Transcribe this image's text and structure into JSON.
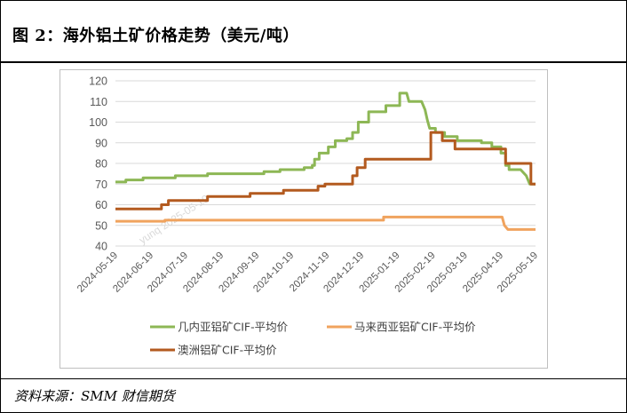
{
  "header": {
    "title": "图 2：海外铝土矿价格走势（美元/吨）"
  },
  "footer": {
    "source": "资料来源：SMM  财信期货"
  },
  "watermark": "yunq 2025-05-19",
  "colors": {
    "guinea": "#8db755",
    "malaysia": "#f0a35e",
    "australia": "#b35a1f"
  },
  "chart_data": {
    "type": "line",
    "title": "",
    "xlabel": "",
    "ylabel": "",
    "ylim": [
      40,
      120
    ],
    "yticks": [
      40,
      50,
      60,
      70,
      80,
      90,
      100,
      110,
      120
    ],
    "grid": true,
    "legend_position": "bottom",
    "xlim": [
      "2024-05-19",
      "2025-05-19"
    ],
    "xticks": [
      "2024-05-19",
      "2024-06-19",
      "2024-07-19",
      "2024-08-19",
      "2024-09-19",
      "2024-10-19",
      "2024-11-19",
      "2024-12-19",
      "2025-01-19",
      "2025-02-19",
      "2025-03-19",
      "2025-04-19",
      "2025-05-19"
    ],
    "series": [
      {
        "name": "几内亚铝矿CIF-平均价",
        "color": "#8db755",
        "points": [
          [
            "2024-05-19",
            71
          ],
          [
            "2024-05-28",
            71
          ],
          [
            "2024-05-28",
            72
          ],
          [
            "2024-06-12",
            72
          ],
          [
            "2024-06-12",
            73
          ],
          [
            "2024-07-10",
            73
          ],
          [
            "2024-07-10",
            74
          ],
          [
            "2024-08-07",
            74
          ],
          [
            "2024-08-07",
            75
          ],
          [
            "2024-09-25",
            75
          ],
          [
            "2024-09-25",
            76
          ],
          [
            "2024-10-09",
            76
          ],
          [
            "2024-10-09",
            77
          ],
          [
            "2024-10-30",
            77
          ],
          [
            "2024-10-30",
            78
          ],
          [
            "2024-11-06",
            78
          ],
          [
            "2024-11-06",
            79
          ],
          [
            "2024-11-08",
            79
          ],
          [
            "2024-11-08",
            82
          ],
          [
            "2024-11-12",
            82
          ],
          [
            "2024-11-12",
            85
          ],
          [
            "2024-11-20",
            85
          ],
          [
            "2024-11-20",
            88
          ],
          [
            "2024-11-26",
            88
          ],
          [
            "2024-11-26",
            91
          ],
          [
            "2024-12-06",
            91
          ],
          [
            "2024-12-06",
            92
          ],
          [
            "2024-12-11",
            92
          ],
          [
            "2024-12-11",
            95
          ],
          [
            "2024-12-16",
            95
          ],
          [
            "2024-12-16",
            100
          ],
          [
            "2024-12-25",
            100
          ],
          [
            "2024-12-25",
            105
          ],
          [
            "2025-01-09",
            105
          ],
          [
            "2025-01-09",
            108
          ],
          [
            "2025-01-21",
            108
          ],
          [
            "2025-01-21",
            114
          ],
          [
            "2025-01-27",
            114
          ],
          [
            "2025-01-29",
            110
          ],
          [
            "2025-02-09",
            110
          ],
          [
            "2025-02-12",
            106
          ],
          [
            "2025-02-14",
            101
          ],
          [
            "2025-02-16",
            97
          ],
          [
            "2025-02-21",
            97
          ],
          [
            "2025-02-21",
            95
          ],
          [
            "2025-03-01",
            95
          ],
          [
            "2025-03-01",
            93
          ],
          [
            "2025-03-12",
            93
          ],
          [
            "2025-03-12",
            91
          ],
          [
            "2025-04-02",
            91
          ],
          [
            "2025-04-02",
            90
          ],
          [
            "2025-04-11",
            90
          ],
          [
            "2025-04-11",
            88
          ],
          [
            "2025-04-19",
            88
          ],
          [
            "2025-04-19",
            85
          ],
          [
            "2025-04-23",
            85
          ],
          [
            "2025-04-23",
            79
          ],
          [
            "2025-04-26",
            79
          ],
          [
            "2025-04-26",
            77
          ],
          [
            "2025-05-06",
            77
          ],
          [
            "2025-05-11",
            74
          ],
          [
            "2025-05-14",
            70
          ],
          [
            "2025-05-19",
            70
          ]
        ]
      },
      {
        "name": "马来西亚铝矿CIF-平均价",
        "color": "#f0a35e",
        "points": [
          [
            "2024-05-19",
            52
          ],
          [
            "2024-07-01",
            52
          ],
          [
            "2024-07-01",
            52.5
          ],
          [
            "2025-01-07",
            52.5
          ],
          [
            "2025-01-07",
            54
          ],
          [
            "2025-04-20",
            54
          ],
          [
            "2025-04-22",
            50
          ],
          [
            "2025-04-25",
            48
          ],
          [
            "2025-05-19",
            48
          ]
        ]
      },
      {
        "name": "澳洲铝矿CIF-平均价",
        "color": "#b35a1f",
        "points": [
          [
            "2024-05-19",
            58
          ],
          [
            "2024-06-28",
            58
          ],
          [
            "2024-06-28",
            60
          ],
          [
            "2024-07-04",
            60
          ],
          [
            "2024-07-04",
            62
          ],
          [
            "2024-08-07",
            62
          ],
          [
            "2024-08-07",
            64
          ],
          [
            "2024-09-13",
            64
          ],
          [
            "2024-09-13",
            65.5
          ],
          [
            "2024-10-12",
            65.5
          ],
          [
            "2024-10-12",
            67
          ],
          [
            "2024-11-11",
            67
          ],
          [
            "2024-11-11",
            69
          ],
          [
            "2024-11-17",
            69
          ],
          [
            "2024-11-17",
            70
          ],
          [
            "2024-12-11",
            70
          ],
          [
            "2024-12-11",
            74
          ],
          [
            "2024-12-15",
            74
          ],
          [
            "2024-12-15",
            78
          ],
          [
            "2024-12-22",
            78
          ],
          [
            "2024-12-22",
            82
          ],
          [
            "2025-02-17",
            82
          ],
          [
            "2025-02-17",
            95
          ],
          [
            "2025-02-27",
            95
          ],
          [
            "2025-02-27",
            91
          ],
          [
            "2025-03-10",
            91
          ],
          [
            "2025-03-10",
            87
          ],
          [
            "2025-04-23",
            87
          ],
          [
            "2025-04-23",
            80
          ],
          [
            "2025-05-15",
            80
          ],
          [
            "2025-05-15",
            70
          ],
          [
            "2025-05-19",
            70
          ]
        ]
      }
    ]
  }
}
